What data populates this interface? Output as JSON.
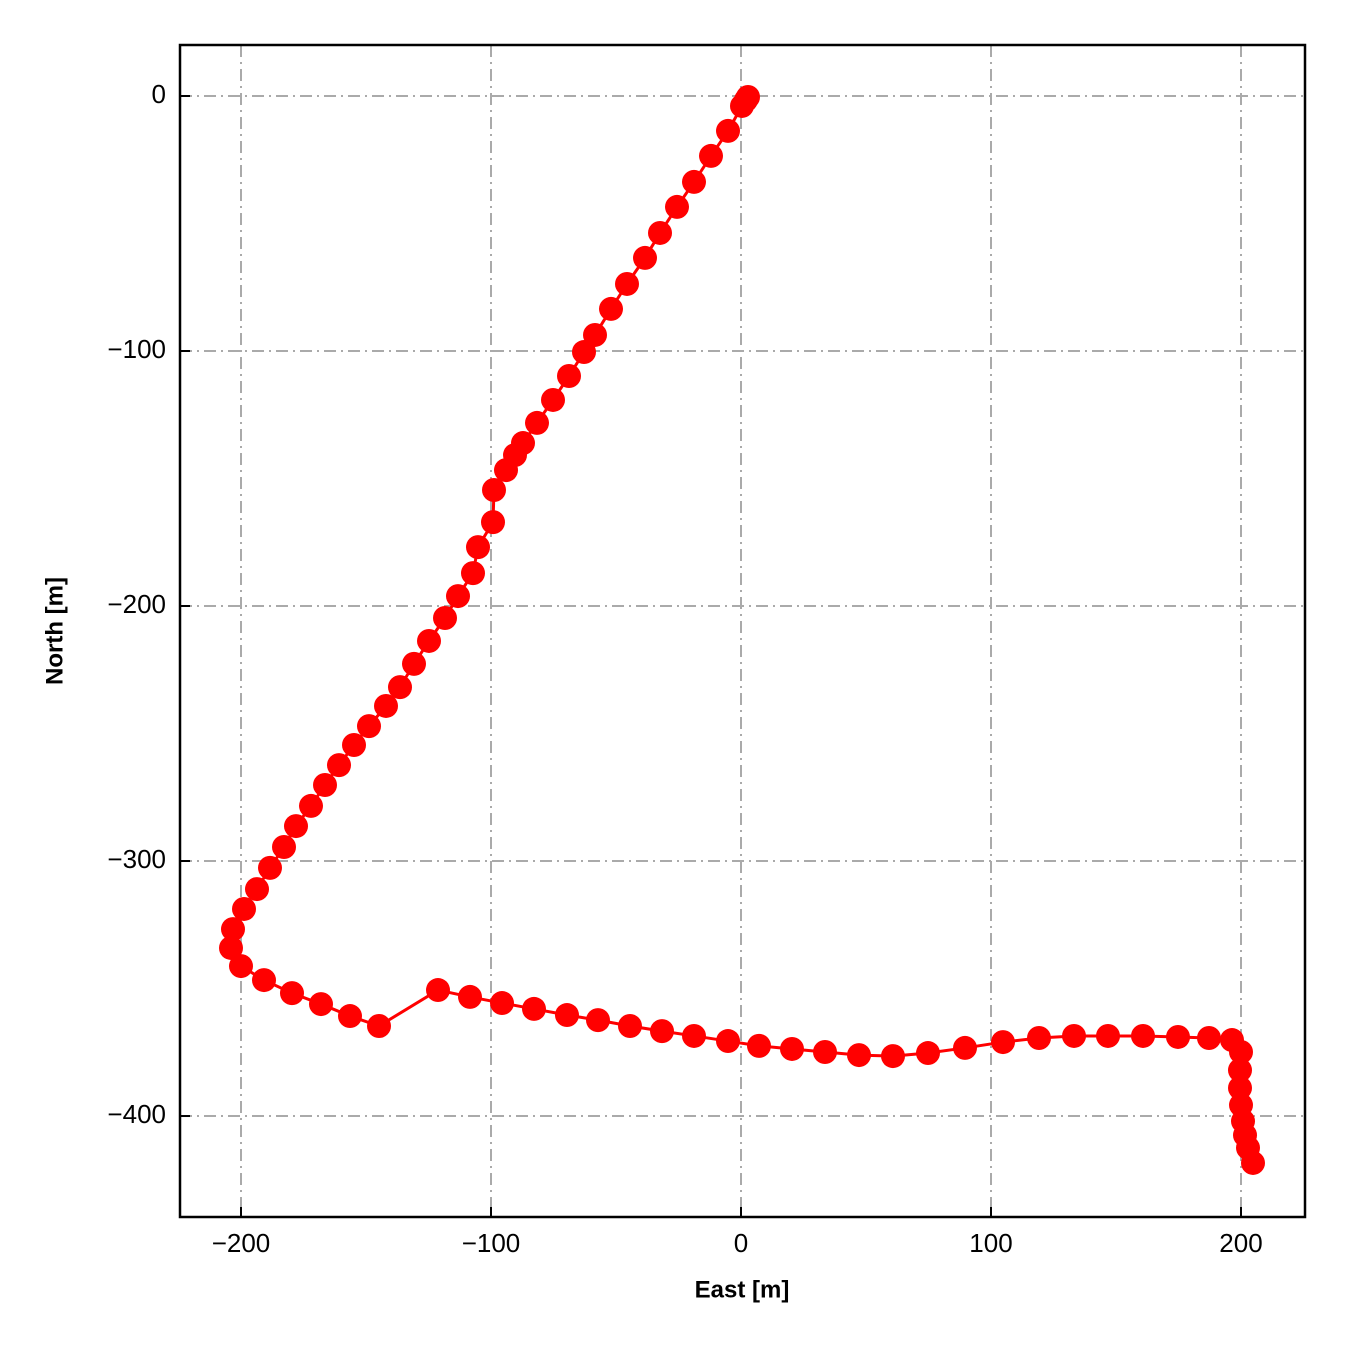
{
  "chart_data": {
    "type": "line",
    "x_label": "East [m]",
    "y_label": "North [m]",
    "xlim": [
      -224.4,
      225.6
    ],
    "ylim": [
      -439.6,
      20
    ],
    "xticks": [
      {
        "value": -200,
        "label": "−200"
      },
      {
        "value": -100,
        "label": "−100"
      },
      0,
      100,
      200
    ],
    "yticks": [
      0,
      {
        "value": -100,
        "label": "−100"
      },
      {
        "value": -200,
        "label": "−200"
      },
      {
        "value": -300,
        "label": "−300"
      },
      {
        "value": -400,
        "label": "−400"
      }
    ],
    "grid": true,
    "series": [
      {
        "color": "#ff0000",
        "x": [
          2.8,
          2,
          0.4,
          -5.2,
          -12,
          -18.8,
          -25.6,
          -32.4,
          -38.4,
          -45.6,
          -52,
          -58.4,
          -62.8,
          -68.8,
          -75.2,
          -81.6,
          -87.2,
          -90.4,
          -94,
          -98.8,
          -99.2,
          -105.2,
          -107.2,
          -113.2,
          -118.4,
          -124.8,
          -130.8,
          -136.4,
          -142,
          -148.8,
          -154.8,
          -160.8,
          -166.4,
          -172,
          -178,
          -182.8,
          -188.4,
          -193.6,
          -198.8,
          -203.2,
          -204,
          -200,
          -190.8,
          -179.6,
          -168,
          -156.4,
          -144.8,
          -121.2,
          -108.4,
          -95.6,
          -82.8,
          -69.6,
          -57.2,
          -44.4,
          -31.6,
          -18.8,
          -5.2,
          7.2,
          20.4,
          33.6,
          47.2,
          60.8,
          74.8,
          89.6,
          104.8,
          119.2,
          133.2,
          146.8,
          160.8,
          174.8,
          187.2,
          196.4,
          200,
          199.6,
          199.6,
          200,
          200.8,
          201.6,
          202.8,
          204.8
        ],
        "values": [
          -0.4,
          -1.6,
          -3.9,
          -13.7,
          -23.5,
          -33.7,
          -43.5,
          -53.7,
          -63.5,
          -73.7,
          -83.5,
          -93.7,
          -100.4,
          -109.8,
          -119.2,
          -128.2,
          -136.1,
          -140.8,
          -146.7,
          -154.5,
          -167.1,
          -176.9,
          -187.1,
          -196.1,
          -204.7,
          -213.7,
          -222.7,
          -231.8,
          -239.2,
          -247.1,
          -254.5,
          -262.4,
          -270.2,
          -278.4,
          -286.3,
          -294.5,
          -302.7,
          -311,
          -318.8,
          -326.7,
          -334.1,
          -341.2,
          -346.7,
          -351.8,
          -356.1,
          -360.8,
          -364.7,
          -350.6,
          -353.3,
          -355.7,
          -358,
          -360.4,
          -362.4,
          -364.7,
          -366.7,
          -368.6,
          -370.6,
          -372.5,
          -373.7,
          -374.9,
          -376.1,
          -376.5,
          -375.3,
          -373.3,
          -371,
          -369.4,
          -368.6,
          -368.6,
          -368.6,
          -369,
          -369.4,
          -370.2,
          -374.9,
          -382,
          -389,
          -395.7,
          -402,
          -407.5,
          -412.5,
          -418.4
        ]
      }
    ]
  }
}
